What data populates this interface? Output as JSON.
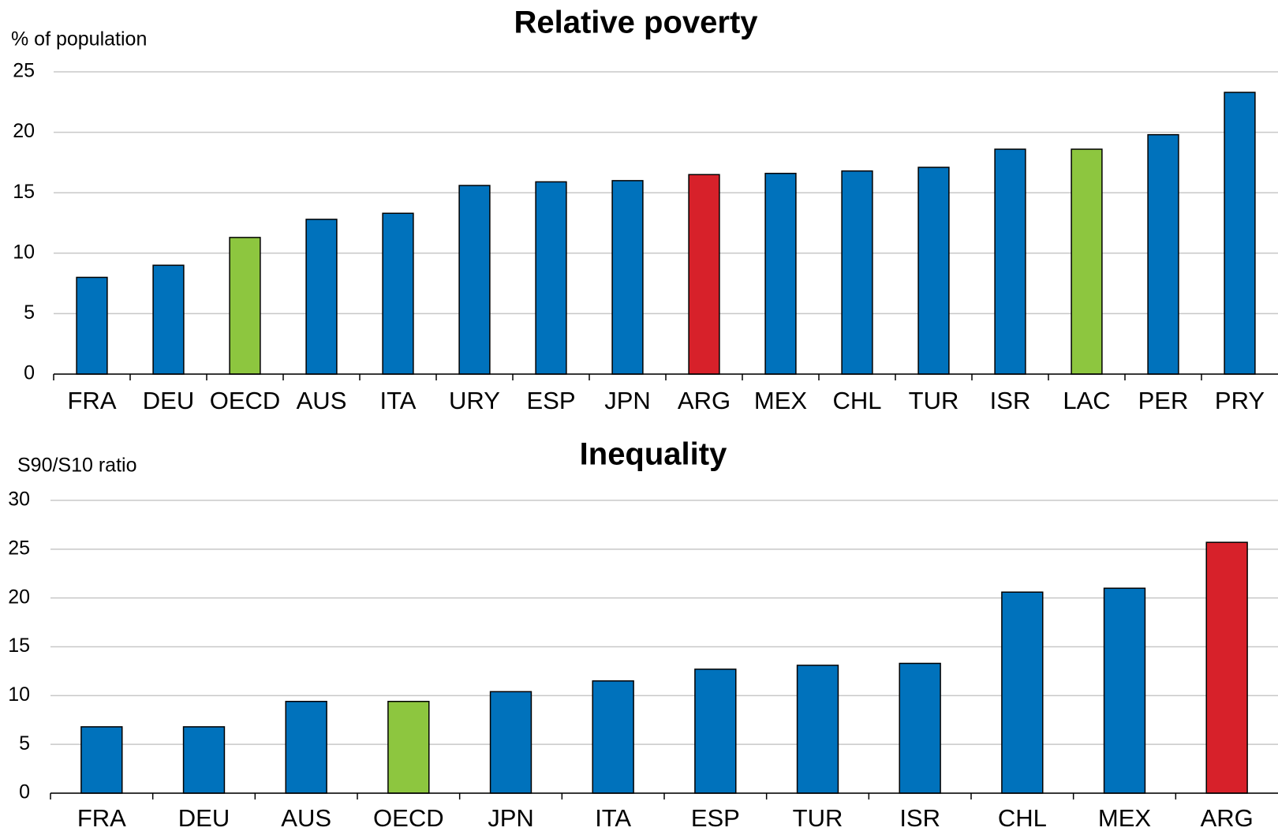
{
  "chart_data": [
    {
      "type": "bar",
      "title": "Relative poverty",
      "y_label": "% of population",
      "categories": [
        "FRA",
        "DEU",
        "OECD",
        "AUS",
        "ITA",
        "URY",
        "ESP",
        "JPN",
        "ARG",
        "MEX",
        "CHL",
        "TUR",
        "ISR",
        "LAC",
        "PER",
        "PRY"
      ],
      "values": [
        8.0,
        9.0,
        11.3,
        12.8,
        13.3,
        15.6,
        15.9,
        16.0,
        16.5,
        16.6,
        16.8,
        17.1,
        18.6,
        18.6,
        19.8,
        23.3
      ],
      "colors": [
        "#0072bc",
        "#0072bc",
        "#8dc63f",
        "#0072bc",
        "#0072bc",
        "#0072bc",
        "#0072bc",
        "#0072bc",
        "#d7212a",
        "#0072bc",
        "#0072bc",
        "#0072bc",
        "#0072bc",
        "#8dc63f",
        "#0072bc",
        "#0072bc"
      ],
      "ylim": [
        0,
        25
      ],
      "yticks": [
        0,
        5,
        10,
        15,
        20,
        25
      ],
      "grid": true
    },
    {
      "type": "bar",
      "title": "Inequality",
      "y_label": "S90/S10 ratio",
      "categories": [
        "FRA",
        "DEU",
        "AUS",
        "OECD",
        "JPN",
        "ITA",
        "ESP",
        "TUR",
        "ISR",
        "CHL",
        "MEX",
        "ARG"
      ],
      "values": [
        6.8,
        6.8,
        9.4,
        9.4,
        10.4,
        11.5,
        12.7,
        13.1,
        13.3,
        20.6,
        21.0,
        25.7
      ],
      "colors": [
        "#0072bc",
        "#0072bc",
        "#0072bc",
        "#8dc63f",
        "#0072bc",
        "#0072bc",
        "#0072bc",
        "#0072bc",
        "#0072bc",
        "#0072bc",
        "#0072bc",
        "#d7212a"
      ],
      "ylim": [
        0,
        30
      ],
      "yticks": [
        0,
        5,
        10,
        15,
        20,
        25,
        30
      ],
      "grid": true
    }
  ]
}
